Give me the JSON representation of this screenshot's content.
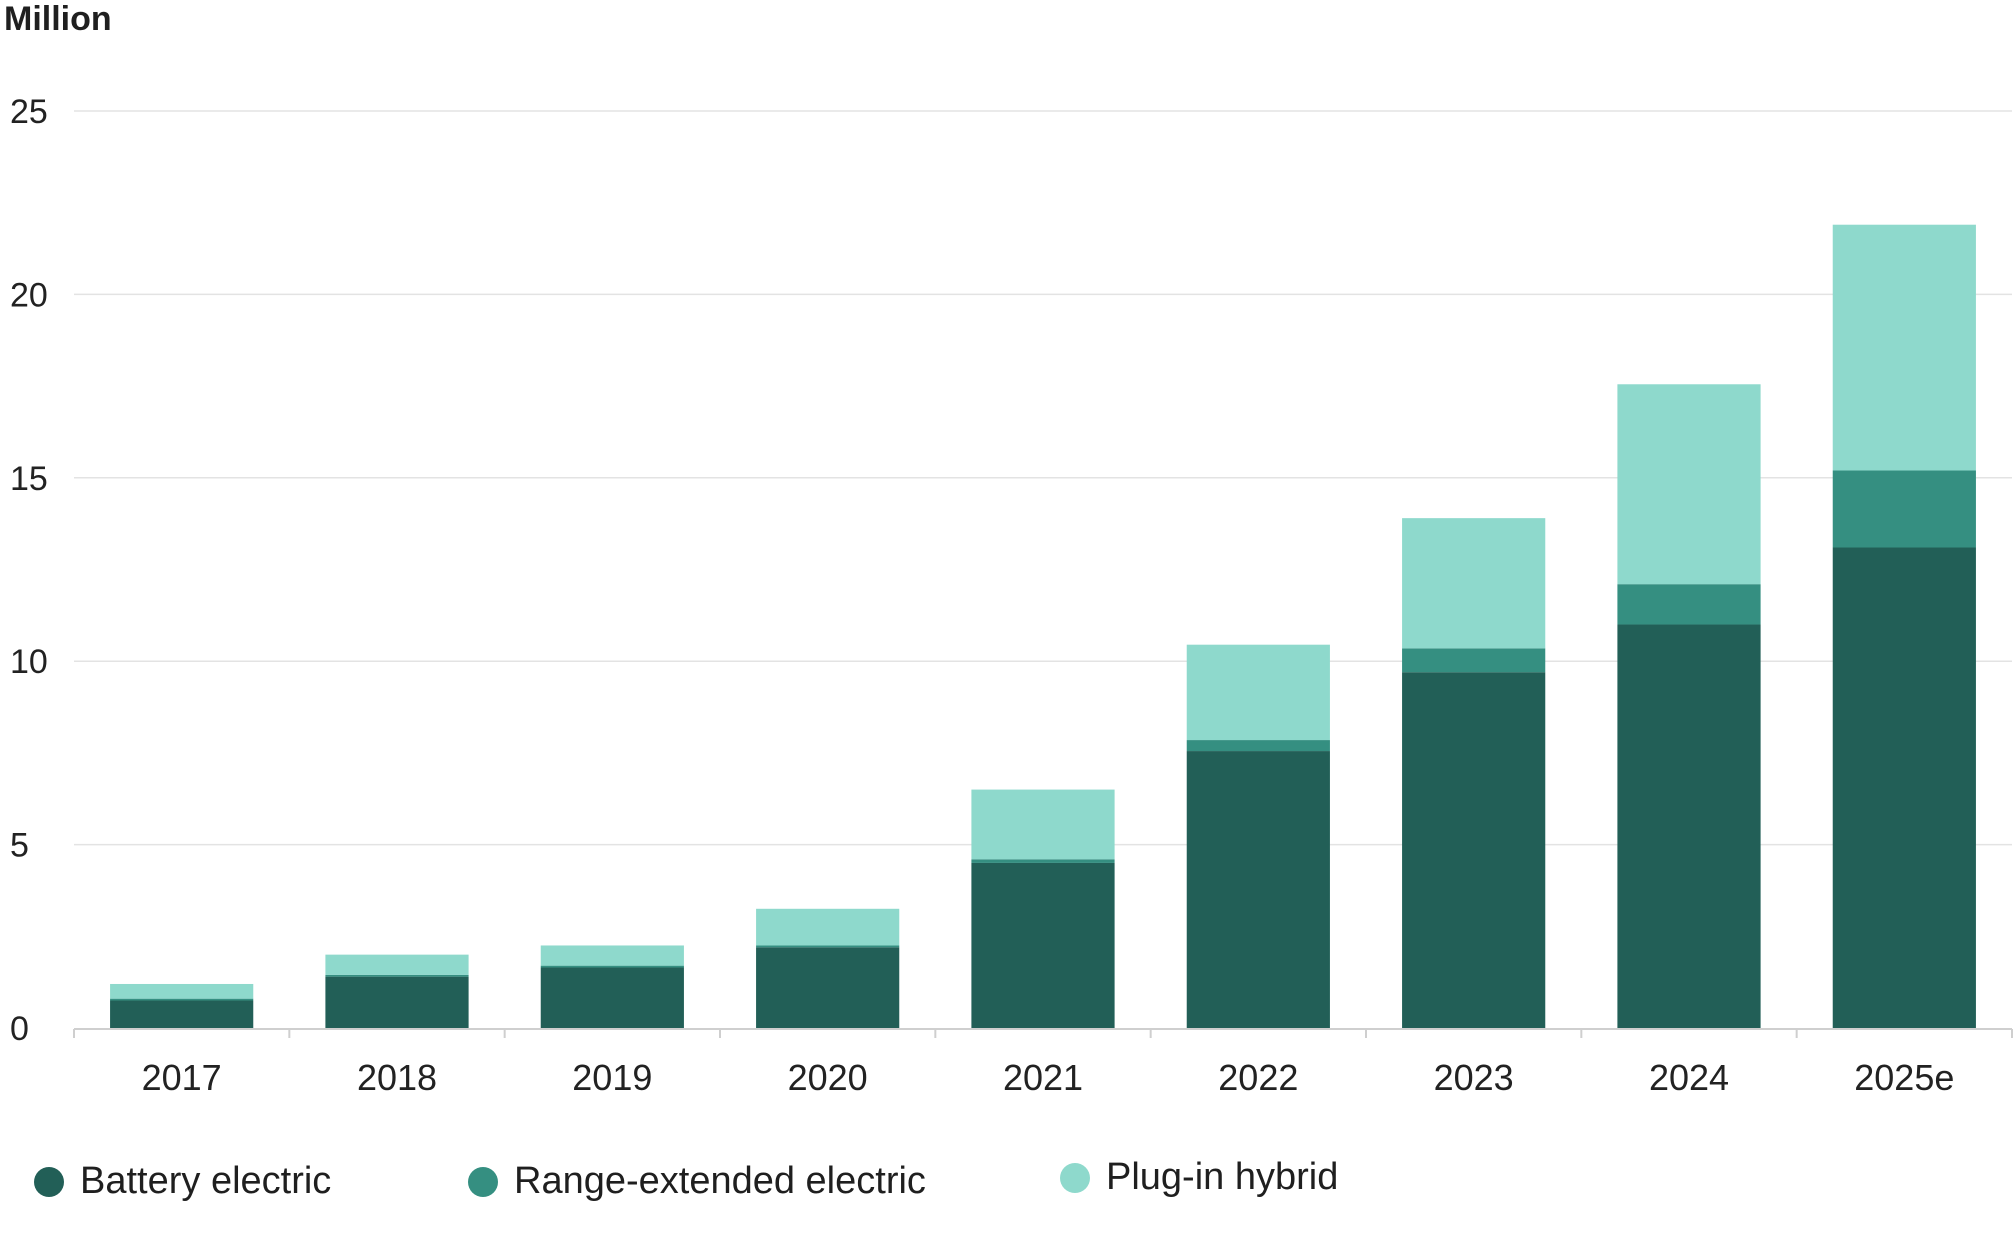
{
  "chart_data": {
    "type": "bar",
    "stacked": true,
    "ylabel": "Million",
    "ylim": [
      0,
      25
    ],
    "yticks": [
      0,
      5,
      10,
      15,
      20,
      25
    ],
    "grid": true,
    "legend_position": "bottom",
    "categories": [
      "2017",
      "2018",
      "2019",
      "2020",
      "2021",
      "2022",
      "2023",
      "2024",
      "2025e"
    ],
    "series": [
      {
        "name": "Battery electric",
        "color": "#225f57",
        "values": [
          0.75,
          1.4,
          1.65,
          2.2,
          4.5,
          7.55,
          9.7,
          11.0,
          13.1
        ]
      },
      {
        "name": "Range-extended electric",
        "color": "#358f81",
        "values": [
          0.05,
          0.05,
          0.05,
          0.05,
          0.1,
          0.3,
          0.65,
          1.1,
          2.1
        ]
      },
      {
        "name": "Plug-in hybrid",
        "color": "#8ed9cc",
        "values": [
          0.4,
          0.55,
          0.55,
          1.0,
          1.9,
          2.6,
          3.55,
          5.45,
          6.7
        ]
      }
    ]
  }
}
